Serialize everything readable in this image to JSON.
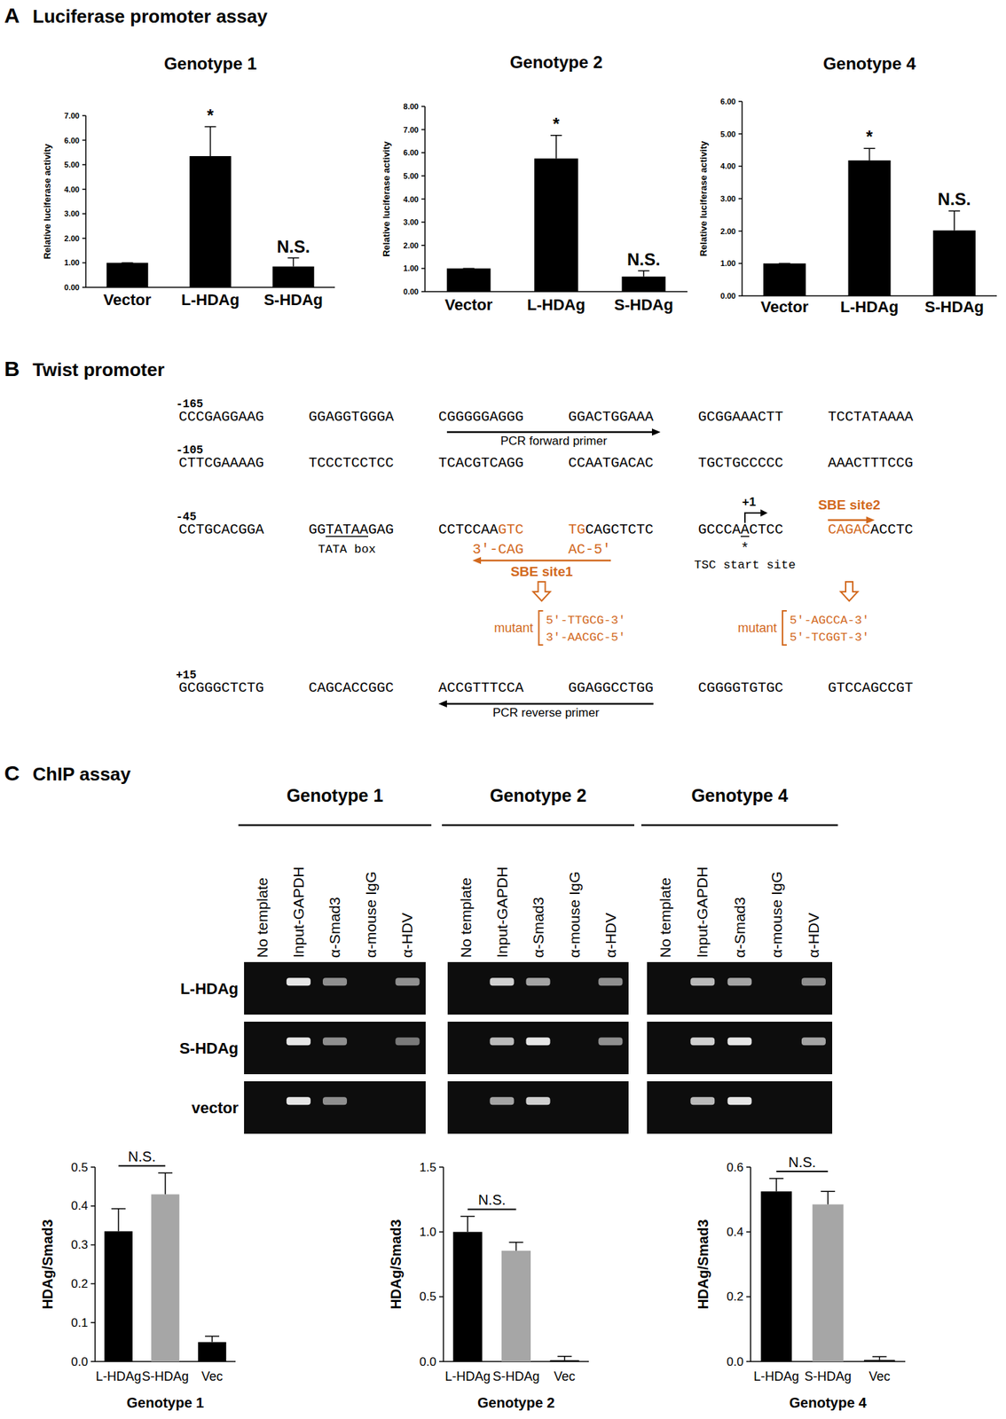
{
  "panels": [
    {
      "letter": "A",
      "title": "Luciferase promoter assay"
    },
    {
      "letter": "B",
      "title": "Twist promoter"
    },
    {
      "letter": "C",
      "title": "ChIP assay"
    }
  ],
  "chart_data": [
    {
      "type": "bar",
      "title": "Genotype 1",
      "y_label": "Relative luciferase activity",
      "categories": [
        "Vector",
        "L-HDAg",
        "S-HDAg"
      ],
      "values": [
        1.0,
        5.35,
        0.85
      ],
      "errors": [
        0,
        1.2,
        0.35
      ],
      "color": "#000000",
      "ylim": [
        0,
        7
      ],
      "yticks": [
        {
          "value": 0,
          "label": "0.00"
        },
        {
          "value": 1,
          "label": "1.00"
        },
        {
          "value": 2,
          "label": "2.00"
        },
        {
          "value": 3,
          "label": "3.00"
        },
        {
          "value": 4,
          "label": "4.00"
        },
        {
          "value": 5,
          "label": "5.00"
        },
        {
          "value": 6,
          "label": "6.00"
        },
        {
          "value": 7,
          "label": "7.00"
        }
      ],
      "annotations": [
        {
          "category": 1,
          "text": "*"
        },
        {
          "category": 2,
          "text": "N.S."
        }
      ]
    },
    {
      "type": "bar",
      "title": "Genotype 2",
      "y_label": "Relative luciferase activity",
      "categories": [
        "Vector",
        "L-HDAg",
        "S-HDAg"
      ],
      "values": [
        1.0,
        5.75,
        0.65
      ],
      "errors": [
        0,
        1.0,
        0.25
      ],
      "color": "#000000",
      "ylim": [
        0,
        8
      ],
      "yticks": [
        {
          "value": 0,
          "label": "0.00"
        },
        {
          "value": 1,
          "label": "1.00"
        },
        {
          "value": 2,
          "label": "2.00"
        },
        {
          "value": 3,
          "label": "3.00"
        },
        {
          "value": 4,
          "label": "4.00"
        },
        {
          "value": 5,
          "label": "5.00"
        },
        {
          "value": 6,
          "label": "6.00"
        },
        {
          "value": 7,
          "label": "7.00"
        },
        {
          "value": 8,
          "label": "8.00"
        }
      ],
      "annotations": [
        {
          "category": 1,
          "text": "*"
        },
        {
          "category": 2,
          "text": "N.S."
        }
      ]
    },
    {
      "type": "bar",
      "title": "Genotype 4",
      "y_label": "Relative luciferase activity",
      "categories": [
        "Vector",
        "L-HDAg",
        "S-HDAg"
      ],
      "values": [
        1.0,
        4.18,
        2.02
      ],
      "errors": [
        0,
        0.37,
        0.6
      ],
      "color": "#000000",
      "ylim": [
        0,
        6
      ],
      "yticks": [
        {
          "value": 0,
          "label": "0.00"
        },
        {
          "value": 1,
          "label": "1.00"
        },
        {
          "value": 2,
          "label": "2.00"
        },
        {
          "value": 3,
          "label": "3.00"
        },
        {
          "value": 4,
          "label": "4.00"
        },
        {
          "value": 5,
          "label": "5.00"
        },
        {
          "value": 6,
          "label": "6.00"
        }
      ],
      "annotations": [
        {
          "category": 1,
          "text": "*"
        },
        {
          "category": 2,
          "text": "N.S."
        }
      ]
    },
    {
      "type": "bar",
      "x_label": "Genotype 1",
      "y_label": "HDAg/Smad3",
      "categories": [
        "L-HDAg",
        "S-HDAg",
        "Vec"
      ],
      "values": [
        0.335,
        0.43,
        0.05
      ],
      "errors": [
        0.058,
        0.055,
        0.015
      ],
      "colors": [
        "#000000",
        "#a6a6a6",
        "#000000"
      ],
      "ylim": [
        0,
        0.5
      ],
      "yticks": [
        {
          "value": 0,
          "label": "0.0"
        },
        0.1,
        0.2,
        0.3,
        0.4,
        0.5
      ],
      "comparisons": [
        {
          "from": 0,
          "to": 1,
          "text": "N.S."
        }
      ]
    },
    {
      "type": "bar",
      "x_label": "Genotype 2",
      "y_label": "HDAg/Smad3",
      "categories": [
        "L-HDAg",
        "S-HDAg",
        "Vec"
      ],
      "values": [
        1.0,
        0.855,
        0.01
      ],
      "errors": [
        0.12,
        0.065,
        0.03
      ],
      "colors": [
        "#000000",
        "#a6a6a6",
        "#000000"
      ],
      "ylim": [
        0,
        1.5
      ],
      "yticks": [
        {
          "value": 0,
          "label": "0.0"
        },
        0.5,
        {
          "value": 1,
          "label": "1.0"
        },
        1.5
      ],
      "comparisons": [
        {
          "from": 0,
          "to": 1,
          "text": "N.S."
        }
      ]
    },
    {
      "type": "bar",
      "x_label": "Genotype 4",
      "y_label": "HDAg/Smad3",
      "categories": [
        "L-HDAg",
        "S-HDAg",
        "Vec"
      ],
      "values": [
        0.525,
        0.485,
        0.005
      ],
      "errors": [
        0.04,
        0.04,
        0.01
      ],
      "colors": [
        "#000000",
        "#a6a6a6",
        "#000000"
      ],
      "ylim": [
        0,
        0.6
      ],
      "yticks": [
        {
          "value": 0,
          "label": "0.0"
        },
        0.2,
        0.4,
        0.6
      ],
      "comparisons": [
        {
          "from": 0,
          "to": 1,
          "text": "N.S."
        }
      ]
    }
  ],
  "promoter": {
    "highlight_color": "#d2691e",
    "lines": [
      {
        "number": "-165",
        "groups": [
          [
            {
              "text": "CCCGAGGAAG"
            }
          ],
          [
            {
              "text": "GGAGGTGGGA"
            }
          ],
          [
            {
              "text": "CGGGGGAGGG"
            }
          ],
          [
            {
              "text": "GGACTGGAAA"
            }
          ],
          [
            {
              "text": "GCGGAAACTT"
            }
          ],
          [
            {
              "text": "TCCTATAAAA"
            }
          ]
        ]
      },
      {
        "number": "-105",
        "groups": [
          [
            {
              "text": "CTTCGAAAAG"
            }
          ],
          [
            {
              "text": "TCCCTCCTCC"
            }
          ],
          [
            {
              "text": "TCACGTCAGG"
            }
          ],
          [
            {
              "text": "CCAATGACAC"
            }
          ],
          [
            {
              "text": "TGCTGCCCCC"
            }
          ],
          [
            {
              "text": "AAACTTTCCG"
            }
          ]
        ]
      },
      {
        "number": "-45",
        "groups": [
          [
            {
              "text": "CCTGCACGGA"
            }
          ],
          [
            {
              "text": "GG"
            },
            {
              "text": "TATAA",
              "underline": true
            },
            {
              "text": "GAG"
            }
          ],
          [
            {
              "text": "CCTCCAA"
            },
            {
              "text": "GTC",
              "highlight": true
            }
          ],
          [
            {
              "text": "TG",
              "highlight": true
            },
            {
              "text": "CAGCTCTC"
            }
          ],
          [
            {
              "text": "GCCCA"
            },
            {
              "text": "A",
              "underline": true
            },
            {
              "text": "CTCC"
            }
          ],
          [
            {
              "text": "CAGAC",
              "highlight": true
            },
            {
              "text": "ACCTC"
            }
          ]
        ]
      },
      {
        "number": "+15",
        "groups": [
          [
            {
              "text": "GCGGGCTCTG"
            }
          ],
          [
            {
              "text": "CAGCACCGGC"
            }
          ],
          [
            {
              "text": "ACCGTTTCCA"
            }
          ],
          [
            {
              "text": "GGAGGCCTGG"
            }
          ],
          [
            {
              "text": "CGGGGTGTGC"
            }
          ],
          [
            {
              "text": "GTCCAGCCGT"
            }
          ]
        ]
      }
    ],
    "labels": {
      "forward_primer": "PCR forward primer",
      "reverse_primer": "PCR reverse primer",
      "tata_box": "TATA box",
      "start_position": "+1",
      "start_marker": "*",
      "start_site": "TSC start site",
      "sbe1": "SBE site1",
      "sbe1_complement": [
        "3'-CAG",
        "AC-5'"
      ],
      "sbe2": "SBE site2",
      "sbe1_mutant": {
        "label": "mutant",
        "sequences": [
          "5'-TTGCG-3'",
          "3'-AACGC-5'"
        ]
      },
      "sbe2_mutant": {
        "label": "mutant",
        "sequences": [
          "5'-AGCCA-3'",
          "5'-TCGGT-3'"
        ]
      }
    }
  },
  "chip_gel": {
    "lanes": [
      "No template",
      "Input-GAPDH",
      "α-Smad3",
      "α-mouse IgG",
      "α-HDV"
    ],
    "row_labels": [
      "L-HDAg",
      "S-HDAg",
      "vector"
    ],
    "groups": [
      {
        "title": "Genotype 1",
        "bands": [
          [
            0,
            1,
            0.6,
            0,
            0.6
          ],
          [
            0,
            1,
            0.6,
            0,
            0.5
          ],
          [
            0,
            1,
            0.6,
            0,
            0
          ]
        ]
      },
      {
        "title": "Genotype 2",
        "bands": [
          [
            0,
            0.9,
            0.7,
            0,
            0.6
          ],
          [
            0,
            0.8,
            1,
            0,
            0.6
          ],
          [
            0,
            0.7,
            0.9,
            0,
            0
          ]
        ]
      },
      {
        "title": "Genotype 4",
        "bands": [
          [
            0,
            0.8,
            0.7,
            0,
            0.6
          ],
          [
            0,
            0.9,
            1,
            0,
            0.7
          ],
          [
            0,
            0.8,
            1,
            0,
            0
          ]
        ]
      }
    ]
  }
}
